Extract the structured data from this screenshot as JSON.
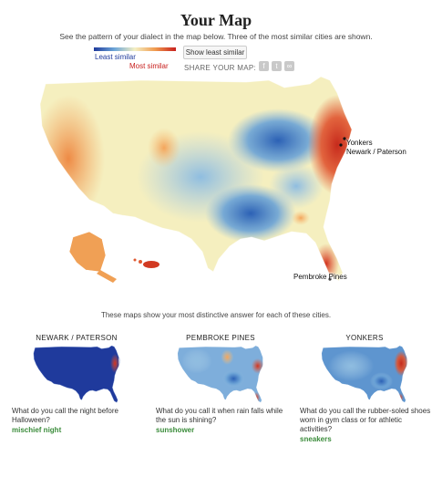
{
  "header": {
    "title": "Your Map",
    "subtitle": "See the pattern of your dialect in the map below. Three of the most similar cities are shown."
  },
  "legend": {
    "least_label": "Least similar",
    "most_label": "Most similar",
    "gradient_colors": [
      "#1f3a9c",
      "#6da6d8",
      "#f4f0c4",
      "#f09a4e",
      "#c8201e"
    ]
  },
  "controls": {
    "toggle_label": "Show least similar",
    "share_label": "SHARE YOUR MAP:",
    "share_icons": [
      "facebook-icon",
      "twitter-icon",
      "link-icon"
    ]
  },
  "main_map": {
    "cities": [
      "Yonkers",
      "Newark / Paterson",
      "Pembroke Pines"
    ]
  },
  "distinct_text": "These maps show your most distinctive answer for each of these cities.",
  "panels": [
    {
      "city": "NEWARK / PATERSON",
      "question": "What do you call the night before Halloween?",
      "answer": "mischief night"
    },
    {
      "city": "PEMBROKE PINES",
      "question": "What do you call it when rain falls while the sun is shining?",
      "answer": "sunshower"
    },
    {
      "city": "YONKERS",
      "question": "What do you call the rubber-soled shoes worn in gym class or for athletic activities?",
      "answer": "sneakers"
    }
  ]
}
